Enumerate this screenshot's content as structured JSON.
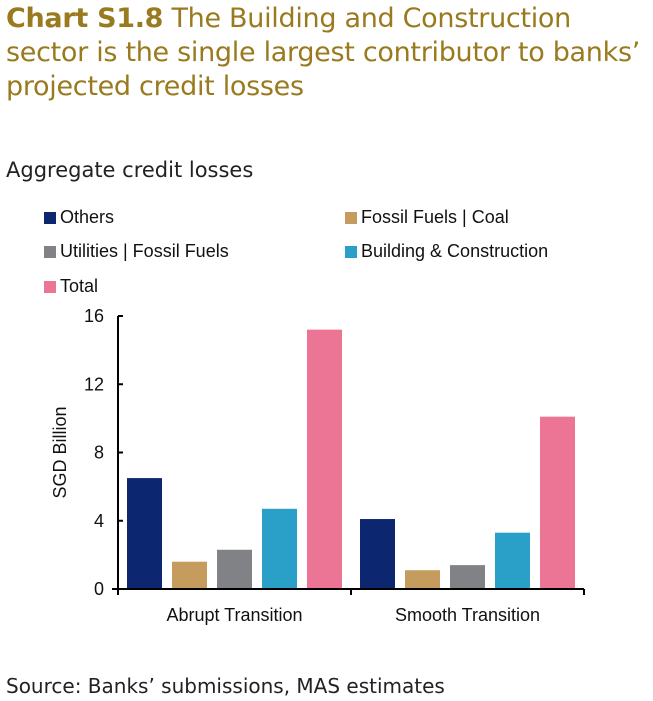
{
  "title_prefix": "Chart S1.8",
  "title_text": " The Building and Construction sector is the single largest contributor to banks’ projected credit losses",
  "subtitle": "Aggregate credit losses",
  "source": "Source: Banks’ submissions, MAS estimates",
  "chart_data": {
    "type": "bar",
    "title": "Aggregate credit losses",
    "xlabel": "",
    "ylabel": "SGD Billion",
    "ylim": [
      0,
      16
    ],
    "yticks": [
      "0",
      "4",
      "8",
      "12",
      "16"
    ],
    "grid": false,
    "legend_position": "top",
    "categories": [
      "Abrupt Transition",
      "Smooth Transition"
    ],
    "series": [
      {
        "name": "Others",
        "color": "#0d2670",
        "values": [
          6.5,
          4.1
        ]
      },
      {
        "name": "Fossil Fuels | Coal",
        "color": "#c59c5e",
        "values": [
          1.6,
          1.1
        ]
      },
      {
        "name": "Utilities | Fossil Fuels",
        "color": "#808285",
        "values": [
          2.3,
          1.4
        ]
      },
      {
        "name": "Building & Construction",
        "color": "#2aa0c8",
        "values": [
          4.7,
          3.3
        ]
      },
      {
        "name": "Total",
        "color": "#ec7595",
        "values": [
          15.2,
          10.1
        ]
      }
    ]
  }
}
